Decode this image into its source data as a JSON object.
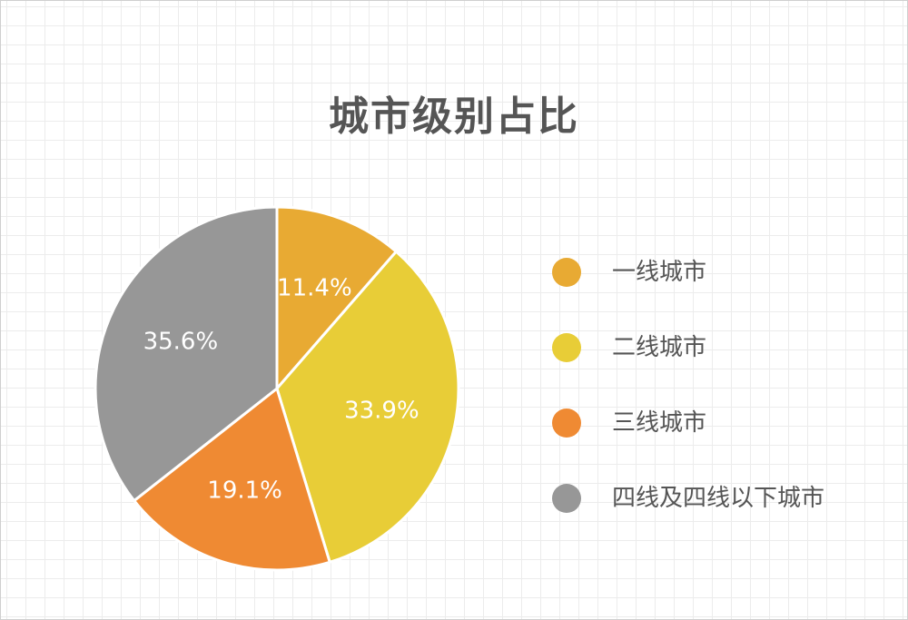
{
  "chart_data": {
    "type": "pie",
    "title": "城市级别占比",
    "legend_position": "right",
    "slices": [
      {
        "label": "一线城市",
        "value": 11.4,
        "display": "11.4%",
        "color": "#e8aa33"
      },
      {
        "label": "二线城市",
        "value": 33.9,
        "display": "33.9%",
        "color": "#e8cd37"
      },
      {
        "label": "三线城市",
        "value": 19.1,
        "display": "19.1%",
        "color": "#ef8a33"
      },
      {
        "label": "四线及四线以下城市",
        "value": 35.6,
        "display": "35.6%",
        "color": "#979797"
      }
    ]
  }
}
